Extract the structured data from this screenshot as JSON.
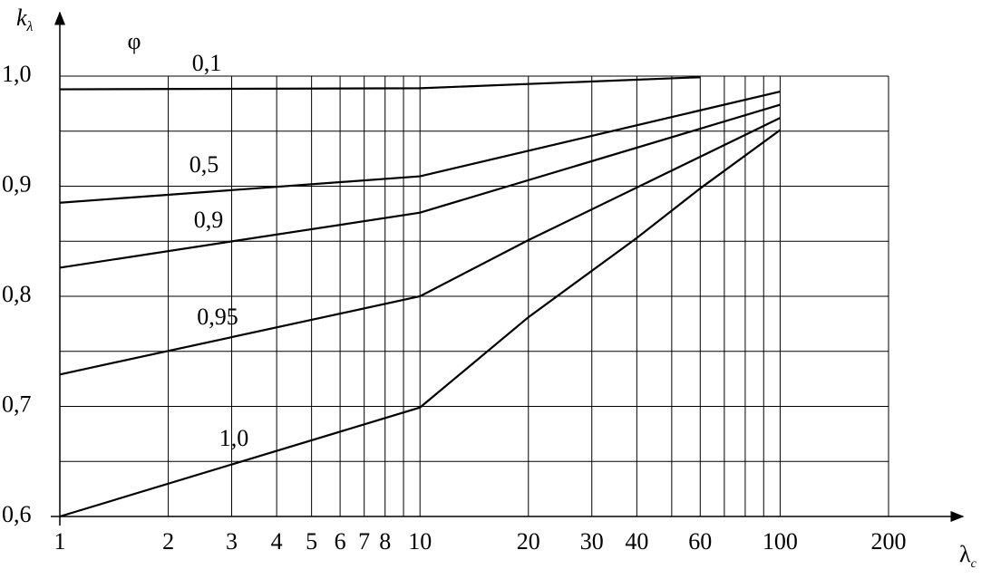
{
  "chart_data": {
    "type": "line",
    "legend_title": "φ",
    "ylabel": {
      "main": "k",
      "sub": "λ"
    },
    "xlabel": {
      "main": "λ",
      "sub": "c"
    },
    "xscale": "log",
    "xlim": [
      1,
      200
    ],
    "ylim": [
      0.6,
      1.0
    ],
    "xticks": [
      1,
      2,
      3,
      4,
      5,
      6,
      7,
      8,
      10,
      20,
      30,
      40,
      60,
      100,
      200
    ],
    "xminorticks": [
      9,
      50,
      70,
      80,
      90
    ],
    "yticks": [
      {
        "value": 0.6,
        "label": "0,6"
      },
      {
        "value": 0.7,
        "label": "0,7"
      },
      {
        "value": 0.8,
        "label": "0,8"
      },
      {
        "value": 0.9,
        "label": "0,9"
      },
      {
        "value": 1.0,
        "label": "1,0"
      }
    ],
    "yminorticks": [
      0.65,
      0.75,
      0.85,
      0.95
    ],
    "grid": true,
    "series": [
      {
        "name": "0,1",
        "color": "#000000",
        "x": [
          1,
          10,
          60
        ],
        "values": [
          0.988,
          0.989,
          0.999
        ]
      },
      {
        "name": "0,5",
        "color": "#000000",
        "x": [
          1,
          10,
          100
        ],
        "values": [
          0.885,
          0.909,
          0.986
        ]
      },
      {
        "name": "0,9",
        "color": "#000000",
        "x": [
          1,
          10,
          100
        ],
        "values": [
          0.826,
          0.876,
          0.974
        ]
      },
      {
        "name": "0,95",
        "color": "#000000",
        "x": [
          1,
          10,
          20,
          100
        ],
        "values": [
          0.729,
          0.8,
          0.851,
          0.962
        ]
      },
      {
        "name": "1,0",
        "color": "#000000",
        "x": [
          1,
          10,
          20,
          40,
          60,
          100
        ],
        "values": [
          0.6,
          0.699,
          0.781,
          0.853,
          0.898,
          0.951
        ]
      }
    ]
  }
}
